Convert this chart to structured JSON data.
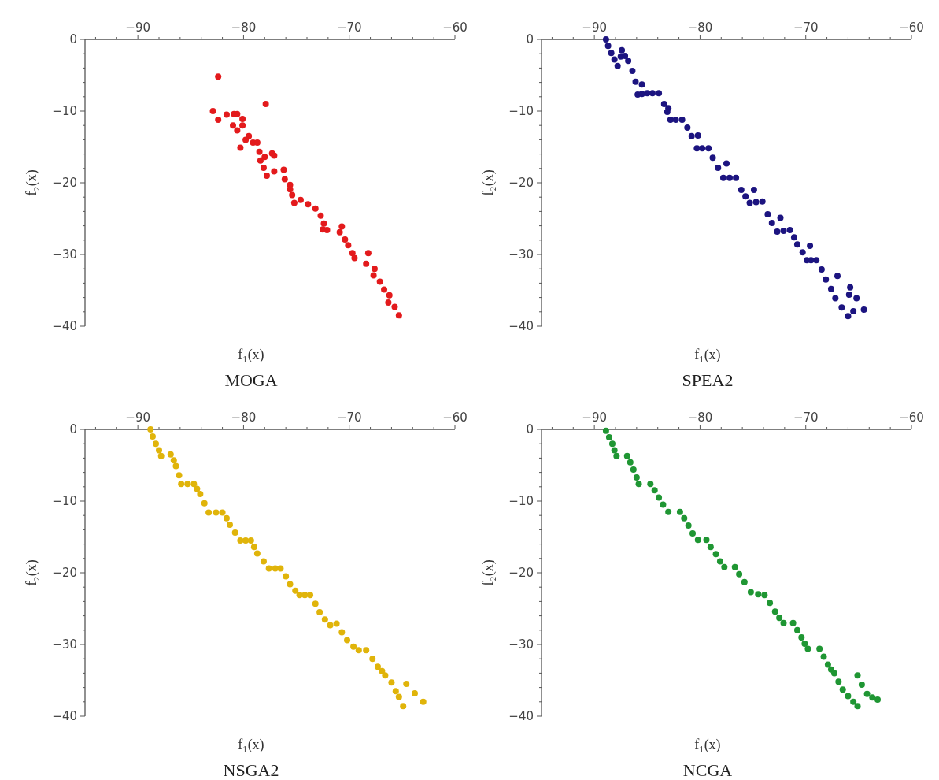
{
  "chart_data": [
    {
      "type": "scatter",
      "title": "MOGA",
      "xlabel": "f₁(x)",
      "ylabel": "f₂(x)",
      "color": "#e31a1c",
      "marker": "circle",
      "xlim": [
        -95,
        -60
      ],
      "ylim": [
        -40,
        0
      ],
      "xticks": [
        {
          "value": -94,
          "label": null
        },
        {
          "value": -92,
          "label": null
        },
        -90,
        {
          "value": -88,
          "label": null
        },
        {
          "value": -86,
          "label": null
        },
        {
          "value": -84,
          "label": null
        },
        {
          "value": -82,
          "label": null
        },
        -80,
        {
          "value": -78,
          "label": null
        },
        {
          "value": -76,
          "label": null
        },
        {
          "value": -74,
          "label": null
        },
        {
          "value": -72,
          "label": null
        },
        -70,
        {
          "value": -68,
          "label": null
        },
        {
          "value": -66,
          "label": null
        },
        {
          "value": -64,
          "label": null
        },
        {
          "value": -62,
          "label": null
        },
        -60
      ],
      "yticks": [
        0,
        {
          "value": -2,
          "label": null
        },
        {
          "value": -4,
          "label": null
        },
        {
          "value": -6,
          "label": null
        },
        {
          "value": -8,
          "label": null
        },
        -10,
        {
          "value": -12,
          "label": null
        },
        {
          "value": -14,
          "label": null
        },
        {
          "value": -16,
          "label": null
        },
        {
          "value": -18,
          "label": null
        },
        -20,
        {
          "value": -22,
          "label": null
        },
        {
          "value": -24,
          "label": null
        },
        {
          "value": -26,
          "label": null
        },
        {
          "value": -28,
          "label": null
        },
        -30,
        {
          "value": -32,
          "label": null
        },
        {
          "value": -34,
          "label": null
        },
        {
          "value": -36,
          "label": null
        },
        {
          "value": -38,
          "label": null
        },
        -40
      ],
      "x": [
        -82.4,
        -77.9,
        -82.9,
        -82.4,
        -81.6,
        -80.9,
        -80.6,
        -80.1,
        -81.0,
        -80.6,
        -80.1,
        -79.5,
        -79.8,
        -80.3,
        -79.1,
        -78.7,
        -78.5,
        -78.0,
        -77.3,
        -77.1,
        -78.4,
        -78.1,
        -77.8,
        -77.1,
        -76.2,
        -76.1,
        -75.6,
        -75.2,
        -75.6,
        -75.4,
        -74.6,
        -73.9,
        -73.2,
        -72.7,
        -72.4,
        -72.1,
        -72.5,
        -70.9,
        -70.7,
        -70.4,
        -70.1,
        -69.7,
        -69.5,
        -68.2,
        -68.4,
        -67.6,
        -67.7,
        -67.1,
        -66.7,
        -66.2,
        -66.3,
        -65.7,
        -65.3
      ],
      "values": [
        -5.2,
        -9.0,
        -10.0,
        -11.2,
        -10.5,
        -10.4,
        -10.4,
        -11.1,
        -12.0,
        -12.7,
        -12.0,
        -13.5,
        -14.0,
        -15.1,
        -14.4,
        -14.4,
        -15.7,
        -16.4,
        -15.9,
        -16.2,
        -16.9,
        -17.9,
        -19.0,
        -18.4,
        -18.2,
        -19.5,
        -20.9,
        -22.8,
        -20.3,
        -21.7,
        -22.4,
        -23.0,
        -23.6,
        -24.6,
        -25.7,
        -26.6,
        -26.5,
        -26.9,
        -26.1,
        -27.9,
        -28.7,
        -29.8,
        -30.5,
        -29.8,
        -31.3,
        -32.0,
        -32.9,
        -33.8,
        -34.9,
        -35.7,
        -36.7,
        -37.3,
        -38.5
      ]
    },
    {
      "type": "scatter",
      "title": "SPEA2",
      "xlabel": "f₁(x)",
      "ylabel": "f₂(x)",
      "color": "#1c1480",
      "marker": "circle",
      "xlim": [
        -95,
        -60
      ],
      "ylim": [
        -40,
        0
      ],
      "xticks": [
        {
          "value": -94,
          "label": null
        },
        {
          "value": -92,
          "label": null
        },
        -90,
        {
          "value": -88,
          "label": null
        },
        {
          "value": -86,
          "label": null
        },
        {
          "value": -84,
          "label": null
        },
        {
          "value": -82,
          "label": null
        },
        -80,
        {
          "value": -78,
          "label": null
        },
        {
          "value": -76,
          "label": null
        },
        {
          "value": -74,
          "label": null
        },
        {
          "value": -72,
          "label": null
        },
        -70,
        {
          "value": -68,
          "label": null
        },
        {
          "value": -66,
          "label": null
        },
        {
          "value": -64,
          "label": null
        },
        {
          "value": -62,
          "label": null
        },
        -60
      ],
      "yticks": [
        0,
        {
          "value": -2,
          "label": null
        },
        {
          "value": -4,
          "label": null
        },
        {
          "value": -6,
          "label": null
        },
        {
          "value": -8,
          "label": null
        },
        -10,
        {
          "value": -12,
          "label": null
        },
        {
          "value": -14,
          "label": null
        },
        {
          "value": -16,
          "label": null
        },
        {
          "value": -18,
          "label": null
        },
        -20,
        {
          "value": -22,
          "label": null
        },
        {
          "value": -24,
          "label": null
        },
        {
          "value": -26,
          "label": null
        },
        {
          "value": -28,
          "label": null
        },
        -30,
        {
          "value": -32,
          "label": null
        },
        {
          "value": -34,
          "label": null
        },
        {
          "value": -36,
          "label": null
        },
        {
          "value": -38,
          "label": null
        },
        -40
      ],
      "x": [
        -88.9,
        -88.7,
        -88.4,
        -88.1,
        -87.8,
        -87.4,
        -87.1,
        -86.8,
        -86.4,
        -86.1,
        -85.9,
        -85.5,
        -85.0,
        -84.5,
        -83.9,
        -83.4,
        -83.1,
        -82.8,
        -82.3,
        -81.7,
        -81.2,
        -80.8,
        -80.3,
        -79.8,
        -79.2,
        -78.8,
        -78.3,
        -77.8,
        -77.2,
        -76.6,
        -76.1,
        -75.7,
        -75.3,
        -74.7,
        -74.1,
        -73.6,
        -73.2,
        -72.7,
        -72.1,
        -71.5,
        -71.1,
        -70.8,
        -70.3,
        -69.9,
        -69.5,
        -69.0,
        -68.5,
        -68.1,
        -67.6,
        -67.2,
        -66.6,
        -66.0,
        -65.5,
        -65.8,
        -65.2,
        -64.5,
        -87.5,
        -85.5,
        -83.0,
        -80.2,
        -77.5,
        -74.9,
        -72.4,
        -69.6,
        -67.0,
        -65.9
      ],
      "values": [
        0,
        -0.9,
        -1.9,
        -2.8,
        -3.7,
        -1.5,
        -2.3,
        -3.0,
        -4.4,
        -5.9,
        -7.7,
        -7.6,
        -7.5,
        -7.5,
        -7.5,
        -9.0,
        -10.1,
        -11.2,
        -11.2,
        -11.2,
        -12.3,
        -13.5,
        -15.2,
        -15.2,
        -15.2,
        -16.5,
        -17.9,
        -19.3,
        -19.3,
        -19.3,
        -21.0,
        -21.9,
        -22.8,
        -22.7,
        -22.6,
        -24.4,
        -25.6,
        -26.8,
        -26.7,
        -26.6,
        -27.6,
        -28.6,
        -29.7,
        -30.8,
        -30.8,
        -30.8,
        -32.1,
        -33.5,
        -34.8,
        -36.1,
        -37.4,
        -38.6,
        -37.9,
        -34.6,
        -36.1,
        -37.7,
        -2.4,
        -6.3,
        -9.6,
        -13.4,
        -17.3,
        -21.0,
        -24.9,
        -28.8,
        -33.0,
        -35.6
      ]
    },
    {
      "type": "scatter",
      "title": "NSGA2",
      "xlabel": "f₁(x)",
      "ylabel": "f₂(x)",
      "color": "#e0b40a",
      "marker": "circle",
      "xlim": [
        -95,
        -60
      ],
      "ylim": [
        -40,
        0
      ],
      "xticks": [
        {
          "value": -94,
          "label": null
        },
        {
          "value": -92,
          "label": null
        },
        -90,
        {
          "value": -88,
          "label": null
        },
        {
          "value": -86,
          "label": null
        },
        {
          "value": -84,
          "label": null
        },
        {
          "value": -82,
          "label": null
        },
        -80,
        {
          "value": -78,
          "label": null
        },
        {
          "value": -76,
          "label": null
        },
        {
          "value": -74,
          "label": null
        },
        {
          "value": -72,
          "label": null
        },
        -70,
        {
          "value": -68,
          "label": null
        },
        {
          "value": -66,
          "label": null
        },
        {
          "value": -64,
          "label": null
        },
        {
          "value": -62,
          "label": null
        },
        -60
      ],
      "yticks": [
        0,
        {
          "value": -2,
          "label": null
        },
        {
          "value": -4,
          "label": null
        },
        {
          "value": -6,
          "label": null
        },
        {
          "value": -8,
          "label": null
        },
        -10,
        {
          "value": -12,
          "label": null
        },
        {
          "value": -14,
          "label": null
        },
        {
          "value": -16,
          "label": null
        },
        {
          "value": -18,
          "label": null
        },
        -20,
        {
          "value": -22,
          "label": null
        },
        {
          "value": -24,
          "label": null
        },
        {
          "value": -26,
          "label": null
        },
        {
          "value": -28,
          "label": null
        },
        -30,
        {
          "value": -32,
          "label": null
        },
        {
          "value": -34,
          "label": null
        },
        {
          "value": -36,
          "label": null
        },
        {
          "value": -38,
          "label": null
        },
        -40
      ],
      "x": [
        -88.8,
        -88.6,
        -88.3,
        -88.0,
        -87.8,
        -86.9,
        -86.6,
        -86.4,
        -86.1,
        -85.9,
        -85.3,
        -84.7,
        -84.4,
        -84.1,
        -83.7,
        -83.3,
        -82.6,
        -82.0,
        -81.6,
        -81.3,
        -80.8,
        -80.3,
        -79.8,
        -79.3,
        -79.0,
        -78.7,
        -78.1,
        -77.6,
        -77.0,
        -76.5,
        -76.0,
        -75.6,
        -75.1,
        -74.7,
        -74.2,
        -73.7,
        -73.2,
        -72.8,
        -72.3,
        -71.8,
        -71.2,
        -70.7,
        -70.2,
        -69.6,
        -69.1,
        -68.4,
        -67.8,
        -67.3,
        -66.9,
        -66.6,
        -66.0,
        -65.6,
        -65.3,
        -64.9,
        -64.6,
        -63.8,
        -63.0
      ],
      "values": [
        0,
        -1.0,
        -2.0,
        -2.9,
        -3.7,
        -3.5,
        -4.3,
        -5.1,
        -6.4,
        -7.6,
        -7.6,
        -7.6,
        -8.3,
        -9.0,
        -10.3,
        -11.6,
        -11.6,
        -11.6,
        -12.4,
        -13.3,
        -14.4,
        -15.5,
        -15.5,
        -15.5,
        -16.4,
        -17.3,
        -18.4,
        -19.4,
        -19.4,
        -19.4,
        -20.5,
        -21.6,
        -22.5,
        -23.1,
        -23.1,
        -23.1,
        -24.3,
        -25.5,
        -26.5,
        -27.3,
        -27.1,
        -28.3,
        -29.4,
        -30.3,
        -30.8,
        -30.8,
        -32.0,
        -33.1,
        -33.7,
        -34.3,
        -35.3,
        -36.5,
        -37.3,
        -38.6,
        -35.5,
        -36.8,
        -38.0
      ]
    },
    {
      "type": "scatter",
      "title": "NCGA",
      "xlabel": "f₁(x)",
      "ylabel": "f₂(x)",
      "color": "#1f9633",
      "marker": "circle",
      "xlim": [
        -95,
        -60
      ],
      "ylim": [
        -40,
        0
      ],
      "xticks": [
        {
          "value": -94,
          "label": null
        },
        {
          "value": -92,
          "label": null
        },
        -90,
        {
          "value": -88,
          "label": null
        },
        {
          "value": -86,
          "label": null
        },
        {
          "value": -84,
          "label": null
        },
        {
          "value": -82,
          "label": null
        },
        -80,
        {
          "value": -78,
          "label": null
        },
        {
          "value": -76,
          "label": null
        },
        {
          "value": -74,
          "label": null
        },
        {
          "value": -72,
          "label": null
        },
        -70,
        {
          "value": -68,
          "label": null
        },
        {
          "value": -66,
          "label": null
        },
        {
          "value": -64,
          "label": null
        },
        {
          "value": -62,
          "label": null
        },
        -60
      ],
      "yticks": [
        0,
        {
          "value": -2,
          "label": null
        },
        {
          "value": -4,
          "label": null
        },
        {
          "value": -6,
          "label": null
        },
        {
          "value": -8,
          "label": null
        },
        -10,
        {
          "value": -12,
          "label": null
        },
        {
          "value": -14,
          "label": null
        },
        {
          "value": -16,
          "label": null
        },
        {
          "value": -18,
          "label": null
        },
        -20,
        {
          "value": -22,
          "label": null
        },
        {
          "value": -24,
          "label": null
        },
        {
          "value": -26,
          "label": null
        },
        {
          "value": -28,
          "label": null
        },
        -30,
        {
          "value": -32,
          "label": null
        },
        {
          "value": -34,
          "label": null
        },
        {
          "value": -36,
          "label": null
        },
        {
          "value": -38,
          "label": null
        },
        -40
      ],
      "x": [
        -88.9,
        -88.6,
        -88.3,
        -88.1,
        -87.9,
        -86.9,
        -86.6,
        -86.3,
        -86.0,
        -85.8,
        -84.7,
        -84.3,
        -83.9,
        -83.5,
        -83.0,
        -81.9,
        -81.5,
        -81.1,
        -80.7,
        -80.2,
        -79.4,
        -79.0,
        -78.5,
        -78.1,
        -77.7,
        -76.7,
        -76.3,
        -75.8,
        -75.2,
        -74.5,
        -73.9,
        -73.4,
        -72.9,
        -72.5,
        -72.1,
        -71.2,
        -70.8,
        -70.4,
        -70.1,
        -69.8,
        -68.7,
        -68.3,
        -67.9,
        -67.6,
        -67.3,
        -66.9,
        -66.5,
        -66.0,
        -65.5,
        -65.1,
        -65.1,
        -64.7,
        -64.2,
        -63.7,
        -63.2
      ],
      "values": [
        -0.2,
        -1.1,
        -2.0,
        -2.9,
        -3.7,
        -3.7,
        -4.6,
        -5.6,
        -6.7,
        -7.6,
        -7.6,
        -8.5,
        -9.5,
        -10.5,
        -11.5,
        -11.5,
        -12.4,
        -13.4,
        -14.5,
        -15.4,
        -15.4,
        -16.4,
        -17.4,
        -18.4,
        -19.2,
        -19.2,
        -20.2,
        -21.3,
        -22.7,
        -23.0,
        -23.1,
        -24.2,
        -25.4,
        -26.3,
        -27.0,
        -27.0,
        -28.0,
        -29.0,
        -29.9,
        -30.6,
        -30.6,
        -31.7,
        -32.8,
        -33.5,
        -34.0,
        -35.2,
        -36.3,
        -37.2,
        -38.0,
        -38.6,
        -34.3,
        -35.6,
        -36.9,
        -37.4,
        -37.7
      ]
    }
  ]
}
